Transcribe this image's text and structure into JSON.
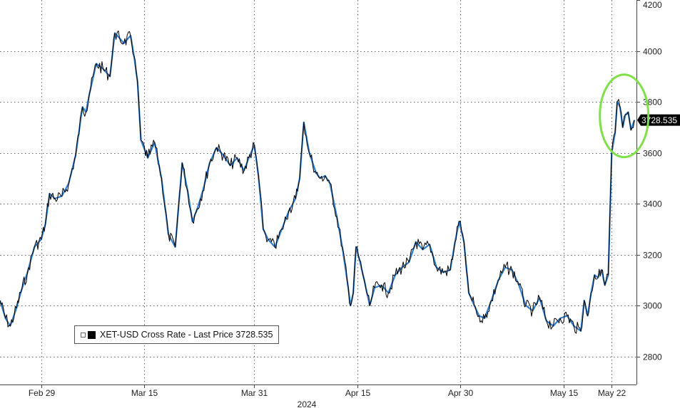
{
  "chart_data": {
    "type": "line",
    "title": "",
    "xlabel": "2024",
    "ylabel": "",
    "ylim": [
      2690,
      4200
    ],
    "yticks": [
      2800,
      3000,
      3200,
      3400,
      3600,
      3800,
      4000,
      4200
    ],
    "xticks": [
      {
        "label": "Feb 29",
        "day": 0
      },
      {
        "label": "Mar 15",
        "day": 15
      },
      {
        "label": "Mar 31",
        "day": 31
      },
      {
        "label": "Apr 15",
        "day": 46
      },
      {
        "label": "Apr 30",
        "day": 61
      },
      {
        "label": "May 15",
        "day": 76
      },
      {
        "label": "May 22",
        "day": 83
      }
    ],
    "xlim_days": [
      -6,
      86.6
    ],
    "series": [
      {
        "name": "XET-USD Cross Rate - Last Price 3728.535",
        "last_price": "3728.535",
        "color": "#000000",
        "highlight_color": "#2f7fd0",
        "x_days": [
          -6.0,
          -5.2,
          -4.5,
          -3.6,
          -3.0,
          -2.0,
          -1.0,
          0.0,
          0.6,
          1.2,
          2.0,
          3.0,
          4.0,
          5.0,
          6.0,
          6.5,
          7.0,
          8.0,
          9.0,
          10.0,
          10.7,
          11.4,
          12.0,
          13.0,
          13.5,
          14.0,
          14.5,
          15.5,
          16.5,
          17.5,
          18.5,
          19.5,
          20.5,
          21.3,
          22.0,
          22.7,
          23.5,
          24.5,
          25.5,
          26.5,
          27.5,
          28.5,
          29.5,
          30.2,
          31.0,
          31.6,
          32.3,
          33.0,
          34.0,
          35.0,
          36.0,
          37.0,
          37.6,
          38.2,
          39.0,
          40.0,
          40.6,
          41.3,
          42.0,
          43.0,
          43.8,
          44.5,
          45.0,
          45.4,
          45.8,
          46.3,
          47.0,
          47.8,
          48.5,
          49.5,
          50.5,
          51.5,
          52.5,
          53.5,
          54.5,
          55.5,
          56.5,
          57.5,
          58.5,
          59.5,
          60.2,
          60.8,
          61.5,
          62.2,
          63.0,
          63.7,
          64.5,
          65.5,
          66.5,
          67.5,
          68.5,
          69.5,
          70.5,
          71.5,
          72.5,
          73.5,
          74.5,
          75.5,
          76.5,
          77.5,
          78.5,
          79.0,
          79.5,
          80.0,
          80.5,
          81.0,
          81.5,
          82.0,
          82.5,
          83.0,
          83.5,
          83.8,
          84.2,
          84.6,
          85.0,
          85.4,
          85.8,
          86.3
        ],
        "values": [
          3020,
          2950,
          2920,
          2990,
          3050,
          3130,
          3230,
          3260,
          3320,
          3440,
          3420,
          3430,
          3480,
          3590,
          3780,
          3760,
          3830,
          3950,
          3930,
          3900,
          4070,
          4050,
          4030,
          4060,
          3980,
          3880,
          3650,
          3580,
          3640,
          3500,
          3280,
          3230,
          3560,
          3450,
          3330,
          3380,
          3450,
          3560,
          3620,
          3590,
          3550,
          3580,
          3530,
          3580,
          3630,
          3510,
          3300,
          3260,
          3230,
          3300,
          3370,
          3420,
          3500,
          3720,
          3600,
          3520,
          3500,
          3510,
          3480,
          3350,
          3230,
          3100,
          3000,
          3050,
          3230,
          3180,
          3100,
          3000,
          3070,
          3080,
          3050,
          3120,
          3150,
          3170,
          3250,
          3220,
          3240,
          3150,
          3130,
          3140,
          3250,
          3330,
          3250,
          3050,
          3000,
          2960,
          2950,
          3020,
          3100,
          3150,
          3140,
          3080,
          3000,
          2980,
          3030,
          2940,
          2920,
          2950,
          2960,
          2920,
          2900,
          3020,
          2960,
          3050,
          3120,
          3110,
          3140,
          3080,
          3120,
          3600,
          3680,
          3800,
          3780,
          3700,
          3750,
          3760,
          3690,
          3728.535
        ]
      }
    ]
  }
}
